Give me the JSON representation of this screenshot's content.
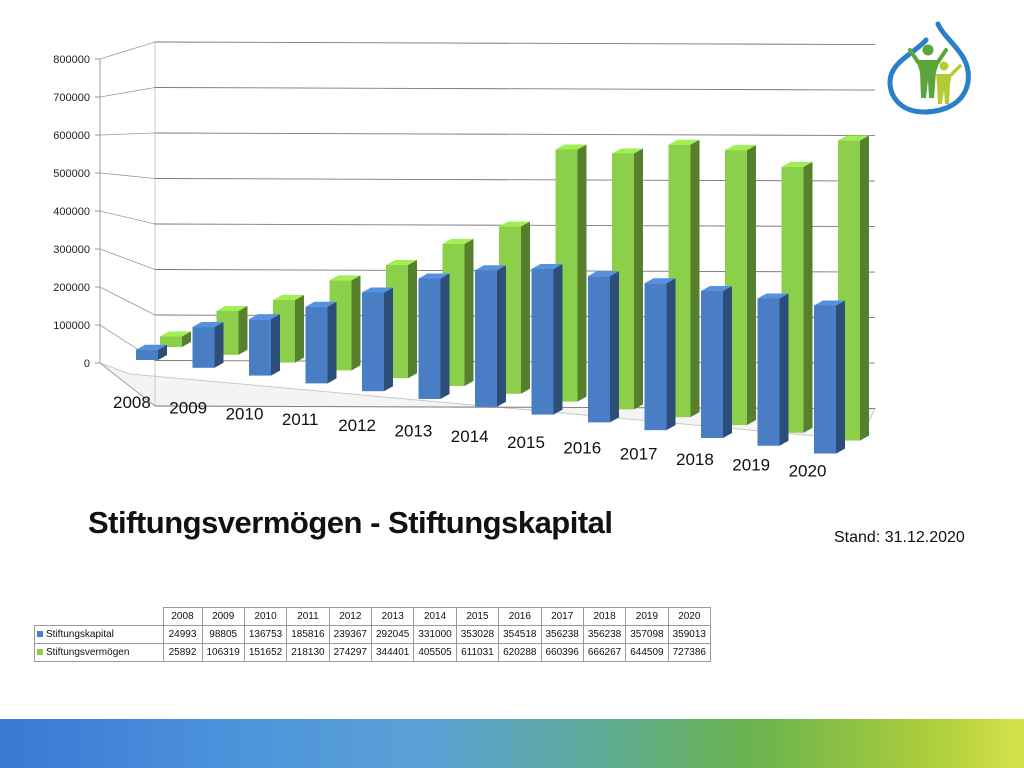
{
  "title": "Stiftungsvermögen - Stiftungskapital",
  "stand": "Stand: 31.12.2020",
  "logo": {
    "icon": "family-drop-logo",
    "colors": [
      "#2a7fc8",
      "#5aa63a",
      "#b3cc36"
    ]
  },
  "chart_data": {
    "type": "bar",
    "style": "3d-clustered-column",
    "categories": [
      "2008",
      "2009",
      "2010",
      "2011",
      "2012",
      "2013",
      "2014",
      "2015",
      "2016",
      "2017",
      "2018",
      "2019",
      "2020"
    ],
    "series": [
      {
        "name": "Stiftungskapital",
        "color": "#4a7ec4",
        "values": [
          24993,
          98805,
          136753,
          185816,
          239367,
          292045,
          331000,
          353028,
          354518,
          356238,
          356238,
          357098,
          359013
        ]
      },
      {
        "name": "Stiftungsvermögen",
        "color": "#8ccf4a",
        "values": [
          25892,
          106319,
          151652,
          218130,
          274297,
          344401,
          405505,
          611031,
          620288,
          660396,
          666267,
          644509,
          727386
        ]
      }
    ],
    "yticks": [
      "0",
      "100000",
      "200000",
      "300000",
      "400000",
      "500000",
      "600000",
      "700000",
      "800000"
    ],
    "ylim": [
      0,
      800000
    ],
    "grid": true,
    "xlabel": "",
    "ylabel": ""
  },
  "table": {
    "rows": [
      {
        "label": "Stiftungskapital",
        "color": "#4a7ec4",
        "values": [
          "24993",
          "98805",
          "136753",
          "185816",
          "239367",
          "292045",
          "331000",
          "353028",
          "354518",
          "356238",
          "356238",
          "357098",
          "359013"
        ]
      },
      {
        "label": "Stiftungsvermögen",
        "color": "#8ccf4a",
        "values": [
          "25892",
          "106319",
          "151652",
          "218130",
          "274297",
          "344401",
          "405505",
          "611031",
          "620288",
          "660396",
          "666267",
          "644509",
          "727386"
        ]
      }
    ]
  }
}
